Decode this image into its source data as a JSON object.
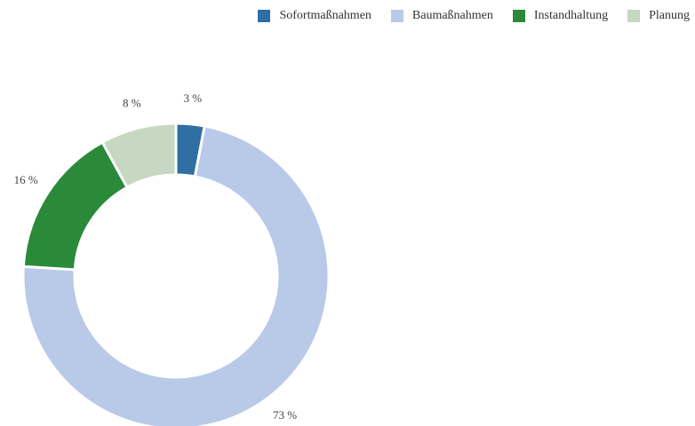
{
  "chart_data": {
    "type": "pie",
    "categories": [
      "Sofortmaßnahmen",
      "Baumaßnahmen",
      "Instandhaltung",
      "Planung"
    ],
    "values": [
      3,
      73,
      16,
      8
    ],
    "value_labels": [
      "3 %",
      "73 %",
      "16 %",
      "8 %"
    ],
    "colors": [
      "#2f6fa3",
      "#b9c9e8",
      "#2a8a3a",
      "#c6d7c2"
    ],
    "donut": true,
    "legend": "top-right"
  }
}
